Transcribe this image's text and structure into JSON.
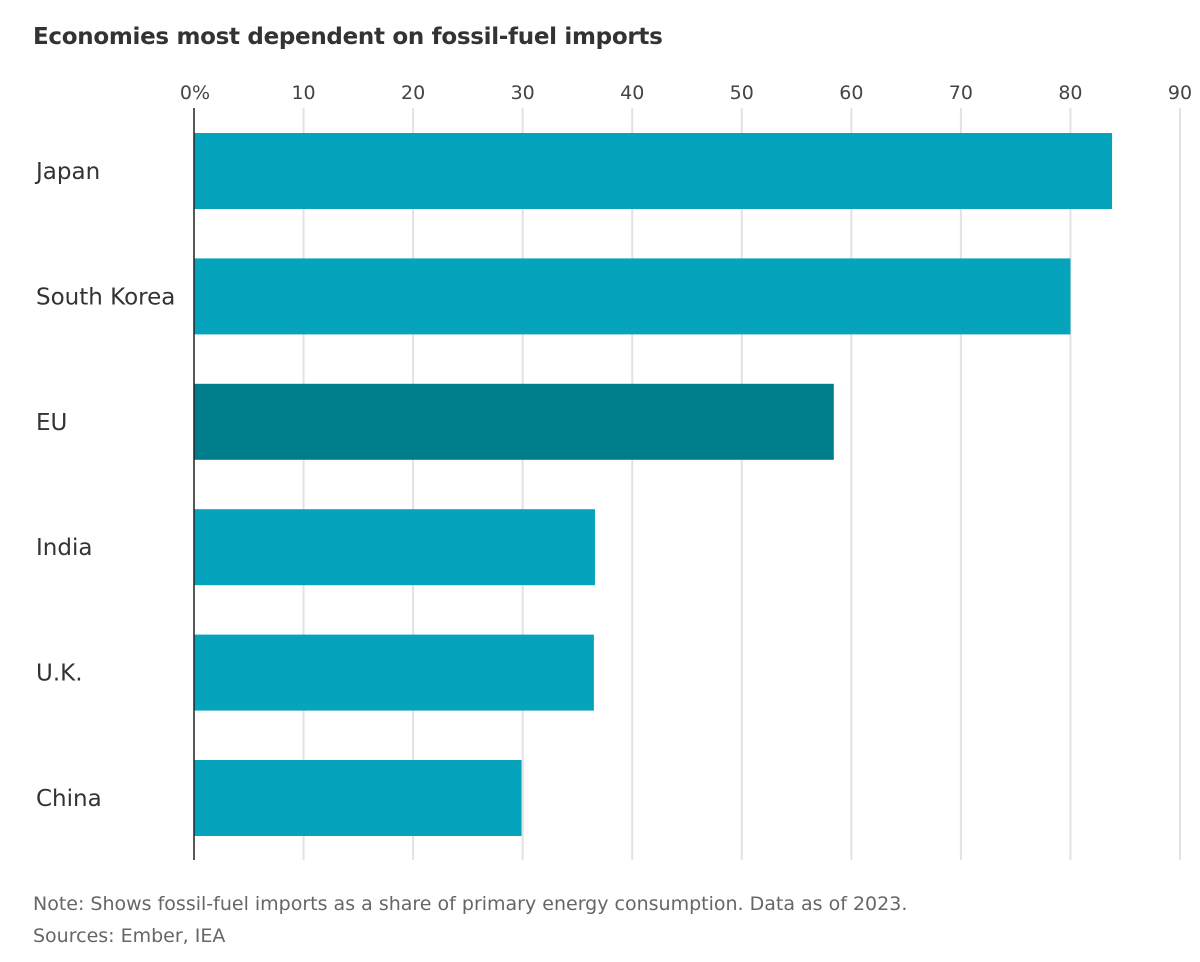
{
  "chart_data": {
    "type": "bar",
    "orientation": "horizontal",
    "title": "Economies most dependent on fossil-fuel imports",
    "categories": [
      "Japan",
      "South Korea",
      "EU",
      "India",
      "U.K.",
      "China"
    ],
    "values": [
      83.8,
      80.0,
      58.4,
      36.6,
      36.5,
      29.9
    ],
    "highlight": "EU",
    "xlim": [
      0,
      90
    ],
    "ticks": [
      0,
      10,
      20,
      30,
      40,
      50,
      60,
      70,
      80,
      90
    ],
    "tick_labels": [
      "0%",
      "10",
      "20",
      "30",
      "40",
      "50",
      "60",
      "70",
      "80",
      "90"
    ],
    "axis_position": "top",
    "grid": true,
    "colors": {
      "default": "#06a3bc",
      "highlight": "#007d8a",
      "grid": "#e2e2e2"
    },
    "note": "Note: Shows fossil-fuel imports as a share of primary energy consumption. Data as of 2023.",
    "sources": "Sources: Ember, IEA"
  }
}
